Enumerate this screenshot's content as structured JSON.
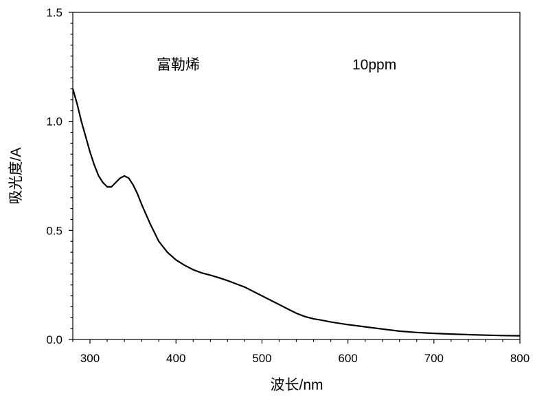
{
  "chart_data": {
    "type": "line",
    "title": "",
    "xlabel": "波长/nm",
    "ylabel": "吸光度/A",
    "xlim": [
      280,
      800
    ],
    "ylim": [
      0.0,
      1.5
    ],
    "x_ticks": [
      300,
      400,
      500,
      600,
      700,
      800
    ],
    "x_tick_labels": [
      "300",
      "400",
      "500",
      "600",
      "700",
      "800"
    ],
    "y_ticks": [
      0.0,
      0.5,
      1.0,
      1.5
    ],
    "y_tick_labels": [
      "0.0",
      "0.5",
      "1.0",
      "1.5"
    ],
    "grid": false,
    "annotations": [
      "富勒烯",
      "10ppm"
    ],
    "series": [
      {
        "color": "#000000",
        "x": [
          280,
          285,
          290,
          295,
          300,
          305,
          310,
          315,
          320,
          325,
          330,
          335,
          340,
          345,
          350,
          355,
          360,
          370,
          380,
          390,
          400,
          410,
          420,
          430,
          440,
          450,
          460,
          470,
          480,
          490,
          500,
          510,
          520,
          530,
          540,
          550,
          560,
          570,
          580,
          600,
          620,
          640,
          660,
          680,
          700,
          720,
          740,
          760,
          780,
          800
        ],
        "y": [
          1.15,
          1.08,
          1.0,
          0.93,
          0.86,
          0.8,
          0.75,
          0.72,
          0.7,
          0.7,
          0.72,
          0.74,
          0.75,
          0.74,
          0.71,
          0.67,
          0.62,
          0.53,
          0.45,
          0.4,
          0.365,
          0.34,
          0.32,
          0.305,
          0.295,
          0.283,
          0.27,
          0.255,
          0.24,
          0.22,
          0.2,
          0.18,
          0.16,
          0.14,
          0.12,
          0.105,
          0.095,
          0.088,
          0.08,
          0.068,
          0.058,
          0.048,
          0.038,
          0.032,
          0.028,
          0.025,
          0.022,
          0.02,
          0.018,
          0.017
        ]
      }
    ]
  }
}
